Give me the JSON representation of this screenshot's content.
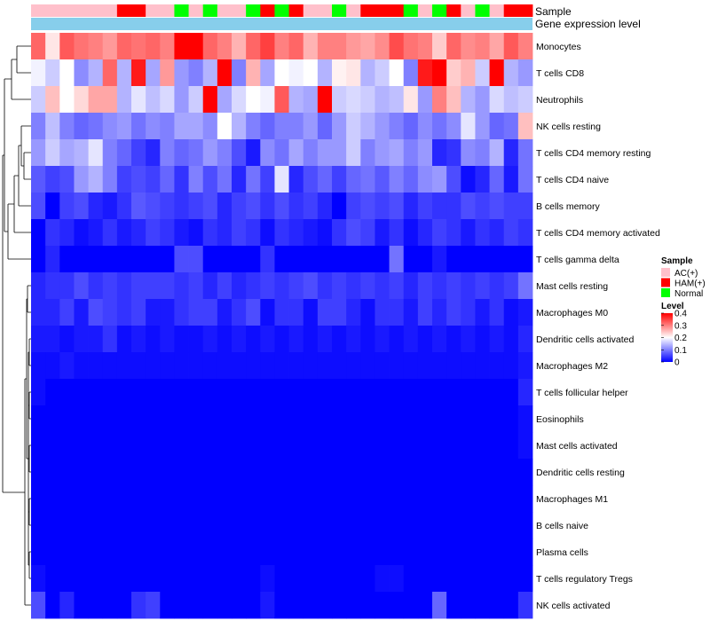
{
  "chart_data": {
    "type": "heatmap",
    "title": "",
    "annotation_labels": [
      "Sample",
      "Gene expression level"
    ],
    "rows": [
      "Monocytes",
      "T cells CD8",
      "Neutrophils",
      "NK cells resting",
      "T cells CD4 memory resting",
      "T cells CD4 naive",
      "B cells memory",
      "T cells CD4 memory activated",
      "T cells gamma delta",
      "Mast cells resting",
      "Macrophages M0",
      "Dendritic cells activated",
      "Macrophages M2",
      "T cells follicular helper",
      "Eosinophils",
      "Mast cells activated",
      "Dendritic cells resting",
      "Macrophages M1",
      "B cells naive",
      "Plasma cells",
      "T cells regulatory  Tregs",
      "NK cells activated"
    ],
    "sample_groups": [
      "AC",
      "AC",
      "AC",
      "AC",
      "AC",
      "AC",
      "HAM",
      "HAM",
      "AC",
      "AC",
      "Normal",
      "AC",
      "Normal",
      "AC",
      "AC",
      "Normal",
      "HAM",
      "Normal",
      "HAM",
      "AC",
      "AC",
      "Normal",
      "AC",
      "HAM",
      "HAM",
      "HAM",
      "Normal",
      "AC",
      "Normal",
      "HAM",
      "AC",
      "Normal",
      "AC",
      "HAM",
      "HAM"
    ],
    "values": [
      [
        0.32,
        0.22,
        0.33,
        0.31,
        0.3,
        0.28,
        0.32,
        0.31,
        0.32,
        0.3,
        0.4,
        0.4,
        0.32,
        0.3,
        0.26,
        0.32,
        0.35,
        0.3,
        0.32,
        0.26,
        0.3,
        0.3,
        0.28,
        0.27,
        0.29,
        0.34,
        0.31,
        0.3,
        0.24,
        0.32,
        0.29,
        0.3,
        0.27,
        0.33,
        0.3
      ],
      [
        0.19,
        0.16,
        0.2,
        0.11,
        0.14,
        0.32,
        0.14,
        0.38,
        0.13,
        0.28,
        0.12,
        0.1,
        0.14,
        0.4,
        0.1,
        0.26,
        0.13,
        0.2,
        0.19,
        0.2,
        0.14,
        0.21,
        0.22,
        0.14,
        0.16,
        0.2,
        0.1,
        0.38,
        0.4,
        0.24,
        0.26,
        0.16,
        0.4,
        0.14,
        0.12
      ],
      [
        0.16,
        0.25,
        0.2,
        0.23,
        0.27,
        0.27,
        0.14,
        0.18,
        0.15,
        0.17,
        0.12,
        0.16,
        0.4,
        0.13,
        0.17,
        0.2,
        0.19,
        0.33,
        0.14,
        0.13,
        0.4,
        0.16,
        0.17,
        0.16,
        0.14,
        0.15,
        0.22,
        0.12,
        0.3,
        0.25,
        0.14,
        0.12,
        0.17,
        0.15,
        0.16
      ],
      [
        0.1,
        0.15,
        0.1,
        0.08,
        0.09,
        0.11,
        0.12,
        0.09,
        0.11,
        0.1,
        0.13,
        0.13,
        0.11,
        0.2,
        0.14,
        0.1,
        0.08,
        0.1,
        0.1,
        0.12,
        0.08,
        0.12,
        0.16,
        0.14,
        0.12,
        0.1,
        0.08,
        0.11,
        0.09,
        0.11,
        0.18,
        0.12,
        0.08,
        0.09,
        0.25
      ],
      [
        0.12,
        0.16,
        0.13,
        0.14,
        0.18,
        0.1,
        0.08,
        0.05,
        0.03,
        0.1,
        0.08,
        0.09,
        0.12,
        0.1,
        0.06,
        0.02,
        0.11,
        0.09,
        0.13,
        0.1,
        0.12,
        0.12,
        0.16,
        0.1,
        0.12,
        0.13,
        0.1,
        0.12,
        0.03,
        0.04,
        0.11,
        0.1,
        0.14,
        0.03,
        0.09
      ],
      [
        0.07,
        0.05,
        0.06,
        0.12,
        0.14,
        0.1,
        0.05,
        0.06,
        0.05,
        0.08,
        0.04,
        0.1,
        0.06,
        0.09,
        0.03,
        0.09,
        0.05,
        0.18,
        0.03,
        0.06,
        0.08,
        0.05,
        0.08,
        0.09,
        0.07,
        0.1,
        0.08,
        0.11,
        0.12,
        0.06,
        0.01,
        0.03,
        0.08,
        0.02,
        0.09
      ],
      [
        0.06,
        0.0,
        0.05,
        0.06,
        0.03,
        0.02,
        0.04,
        0.07,
        0.06,
        0.05,
        0.04,
        0.05,
        0.06,
        0.03,
        0.05,
        0.06,
        0.04,
        0.06,
        0.04,
        0.05,
        0.03,
        0.0,
        0.05,
        0.06,
        0.05,
        0.06,
        0.03,
        0.05,
        0.04,
        0.04,
        0.06,
        0.05,
        0.06,
        0.05,
        0.05
      ],
      [
        0.0,
        0.04,
        0.03,
        0.01,
        0.02,
        0.04,
        0.02,
        0.03,
        0.05,
        0.04,
        0.02,
        0.01,
        0.04,
        0.03,
        0.05,
        0.04,
        0.01,
        0.04,
        0.03,
        0.02,
        0.01,
        0.04,
        0.06,
        0.05,
        0.02,
        0.04,
        0.01,
        0.03,
        0.05,
        0.04,
        0.02,
        0.04,
        0.03,
        0.05,
        0.04
      ],
      [
        0.0,
        0.03,
        0.0,
        0.0,
        0.0,
        0.0,
        0.0,
        0.0,
        0.0,
        0.0,
        0.06,
        0.06,
        0.0,
        0.0,
        0.0,
        0.0,
        0.04,
        0.0,
        0.0,
        0.0,
        0.0,
        0.0,
        0.0,
        0.0,
        0.0,
        0.09,
        0.0,
        0.0,
        0.02,
        0.0,
        0.0,
        0.0,
        0.0,
        0.0,
        0.0
      ],
      [
        0.03,
        0.04,
        0.04,
        0.06,
        0.04,
        0.05,
        0.04,
        0.05,
        0.05,
        0.05,
        0.04,
        0.05,
        0.03,
        0.05,
        0.03,
        0.04,
        0.05,
        0.04,
        0.05,
        0.06,
        0.04,
        0.05,
        0.04,
        0.05,
        0.04,
        0.05,
        0.03,
        0.05,
        0.04,
        0.05,
        0.04,
        0.05,
        0.04,
        0.05,
        0.09
      ],
      [
        0.03,
        0.03,
        0.05,
        0.02,
        0.06,
        0.05,
        0.04,
        0.05,
        0.02,
        0.02,
        0.04,
        0.05,
        0.05,
        0.02,
        0.04,
        0.06,
        0.01,
        0.04,
        0.04,
        0.01,
        0.05,
        0.05,
        0.03,
        0.01,
        0.04,
        0.04,
        0.02,
        0.05,
        0.03,
        0.05,
        0.04,
        0.02,
        0.04,
        0.01,
        0.02
      ],
      [
        0.02,
        0.02,
        0.01,
        0.02,
        0.02,
        0.04,
        0.01,
        0.02,
        0.01,
        0.02,
        0.01,
        0.01,
        0.02,
        0.01,
        0.02,
        0.01,
        0.02,
        0.01,
        0.02,
        0.01,
        0.02,
        0.01,
        0.02,
        0.01,
        0.02,
        0.01,
        0.02,
        0.01,
        0.02,
        0.01,
        0.02,
        0.01,
        0.02,
        0.01,
        0.03
      ],
      [
        0.01,
        0.01,
        0.02,
        0.01,
        0.01,
        0.01,
        0.01,
        0.01,
        0.01,
        0.01,
        0.01,
        0.01,
        0.01,
        0.01,
        0.01,
        0.01,
        0.01,
        0.01,
        0.01,
        0.01,
        0.01,
        0.01,
        0.01,
        0.01,
        0.01,
        0.01,
        0.01,
        0.01,
        0.01,
        0.01,
        0.01,
        0.01,
        0.01,
        0.01,
        0.02
      ],
      [
        0.01,
        0.0,
        0.0,
        0.0,
        0.0,
        0.0,
        0.0,
        0.0,
        0.0,
        0.0,
        0.0,
        0.0,
        0.0,
        0.0,
        0.0,
        0.0,
        0.0,
        0.0,
        0.0,
        0.0,
        0.0,
        0.0,
        0.0,
        0.0,
        0.0,
        0.0,
        0.0,
        0.0,
        0.0,
        0.0,
        0.0,
        0.0,
        0.0,
        0.0,
        0.03
      ],
      [
        0.0,
        0.0,
        0.0,
        0.0,
        0.0,
        0.0,
        0.0,
        0.0,
        0.0,
        0.0,
        0.0,
        0.0,
        0.0,
        0.0,
        0.0,
        0.0,
        0.0,
        0.0,
        0.0,
        0.0,
        0.0,
        0.0,
        0.0,
        0.0,
        0.0,
        0.0,
        0.0,
        0.0,
        0.0,
        0.0,
        0.0,
        0.0,
        0.0,
        0.0,
        0.01
      ],
      [
        0.0,
        0.0,
        0.0,
        0.0,
        0.0,
        0.0,
        0.0,
        0.0,
        0.0,
        0.0,
        0.0,
        0.0,
        0.0,
        0.0,
        0.0,
        0.0,
        0.0,
        0.0,
        0.0,
        0.0,
        0.0,
        0.0,
        0.0,
        0.0,
        0.0,
        0.0,
        0.0,
        0.0,
        0.0,
        0.0,
        0.0,
        0.0,
        0.0,
        0.0,
        0.01
      ],
      [
        0.0,
        0.0,
        0.0,
        0.0,
        0.0,
        0.0,
        0.0,
        0.0,
        0.0,
        0.0,
        0.0,
        0.0,
        0.0,
        0.0,
        0.0,
        0.0,
        0.0,
        0.0,
        0.0,
        0.0,
        0.0,
        0.0,
        0.0,
        0.0,
        0.0,
        0.0,
        0.0,
        0.0,
        0.0,
        0.0,
        0.0,
        0.0,
        0.0,
        0.0,
        0.0
      ],
      [
        0.0,
        0.0,
        0.0,
        0.0,
        0.0,
        0.0,
        0.0,
        0.0,
        0.0,
        0.0,
        0.0,
        0.0,
        0.0,
        0.0,
        0.0,
        0.0,
        0.0,
        0.0,
        0.0,
        0.0,
        0.0,
        0.0,
        0.0,
        0.0,
        0.0,
        0.0,
        0.0,
        0.0,
        0.0,
        0.0,
        0.0,
        0.0,
        0.0,
        0.0,
        0.0
      ],
      [
        0.0,
        0.0,
        0.0,
        0.0,
        0.0,
        0.0,
        0.0,
        0.0,
        0.0,
        0.0,
        0.0,
        0.0,
        0.0,
        0.0,
        0.0,
        0.0,
        0.0,
        0.0,
        0.0,
        0.0,
        0.0,
        0.0,
        0.0,
        0.0,
        0.0,
        0.0,
        0.0,
        0.0,
        0.0,
        0.0,
        0.0,
        0.0,
        0.0,
        0.0,
        0.0
      ],
      [
        0.0,
        0.0,
        0.0,
        0.0,
        0.0,
        0.0,
        0.0,
        0.0,
        0.0,
        0.0,
        0.0,
        0.0,
        0.0,
        0.0,
        0.0,
        0.0,
        0.0,
        0.0,
        0.0,
        0.0,
        0.0,
        0.0,
        0.0,
        0.0,
        0.0,
        0.0,
        0.0,
        0.0,
        0.0,
        0.0,
        0.0,
        0.0,
        0.0,
        0.0,
        0.0
      ],
      [
        0.01,
        0.0,
        0.0,
        0.0,
        0.0,
        0.0,
        0.0,
        0.0,
        0.0,
        0.0,
        0.0,
        0.0,
        0.0,
        0.0,
        0.0,
        0.0,
        0.01,
        0.0,
        0.0,
        0.0,
        0.0,
        0.0,
        0.0,
        0.0,
        0.01,
        0.01,
        0.0,
        0.0,
        0.0,
        0.0,
        0.0,
        0.0,
        0.0,
        0.0,
        0.0
      ],
      [
        0.06,
        0.0,
        0.03,
        0.0,
        0.0,
        0.0,
        0.0,
        0.04,
        0.05,
        0.0,
        0.0,
        0.0,
        0.0,
        0.0,
        0.0,
        0.0,
        0.02,
        0.0,
        0.0,
        0.0,
        0.0,
        0.0,
        0.0,
        0.0,
        0.0,
        0.0,
        0.0,
        0.0,
        0.08,
        0.0,
        0.0,
        0.0,
        0.0,
        0.0,
        0.04
      ]
    ],
    "color_scale": {
      "min": 0,
      "max": 0.4,
      "low": "#0000ff",
      "mid": "#ffffff",
      "high": "#ff0000",
      "midpoint": 0.2
    },
    "expression_bar_color": "#87ceeb",
    "legend": {
      "sample_title": "Sample",
      "sample_items": [
        {
          "label": "AC(+)",
          "key": "AC",
          "color": "#ffc0cb"
        },
        {
          "label": "HAM(+)",
          "key": "HAM",
          "color": "#ff0000"
        },
        {
          "label": "Normal",
          "key": "Normal",
          "color": "#00ff00"
        }
      ],
      "level_title": "Level",
      "level_ticks": [
        "0.4",
        "0.3",
        "0.2",
        "0.1",
        "0"
      ],
      "level_tick_values": [
        0.4,
        0.3,
        0.2,
        0.1,
        0
      ]
    }
  }
}
